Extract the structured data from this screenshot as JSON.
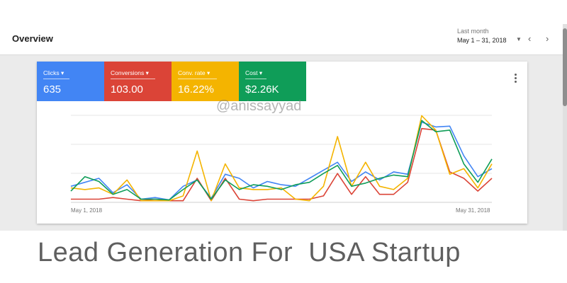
{
  "header": {
    "title": "Overview",
    "date_range_caption": "Last month",
    "date_range_value": "May 1 – 31, 2018"
  },
  "scorecards": [
    {
      "label": "Clicks",
      "value": "635",
      "color": "#4285f4"
    },
    {
      "label": "Conversions",
      "value": "103.00",
      "color": "#db4437"
    },
    {
      "label": "Conv. rate",
      "value": "16.22%",
      "color": "#f4b400"
    },
    {
      "label": "Cost",
      "value": "$2.26K",
      "color": "#0f9d58"
    }
  ],
  "watermark": "@anissayyad",
  "caption": "Lead Generation For  USA Startup",
  "chart_data": {
    "type": "line",
    "x_start_label": "May 1, 2018",
    "x_end_label": "May 31, 2018",
    "grid": true,
    "series": [
      {
        "color": "#4285f4",
        "values": [
          20,
          25,
          30,
          12,
          22,
          4,
          6,
          3,
          20,
          28,
          5,
          35,
          30,
          18,
          26,
          22,
          20,
          30,
          40,
          50,
          26,
          38,
          28,
          38,
          35,
          100,
          94,
          95,
          58,
          32,
          42
        ]
      },
      {
        "color": "#db4437",
        "values": [
          4,
          4,
          4,
          6,
          4,
          2,
          4,
          2,
          2,
          30,
          2,
          30,
          4,
          2,
          4,
          4,
          4,
          4,
          8,
          36,
          10,
          32,
          10,
          10,
          25,
          92,
          90,
          38,
          30,
          14,
          30
        ]
      },
      {
        "color": "#f4b400",
        "values": [
          18,
          16,
          18,
          10,
          28,
          2,
          2,
          2,
          8,
          64,
          2,
          48,
          18,
          16,
          16,
          18,
          4,
          2,
          20,
          82,
          20,
          50,
          20,
          16,
          30,
          108,
          90,
          35,
          42,
          18,
          48
        ]
      },
      {
        "color": "#0f9d58",
        "values": [
          14,
          32,
          26,
          10,
          16,
          4,
          4,
          3,
          16,
          28,
          4,
          28,
          16,
          22,
          20,
          16,
          22,
          25,
          36,
          46,
          20,
          24,
          30,
          34,
          32,
          102,
          88,
          90,
          48,
          25,
          54
        ]
      }
    ]
  }
}
